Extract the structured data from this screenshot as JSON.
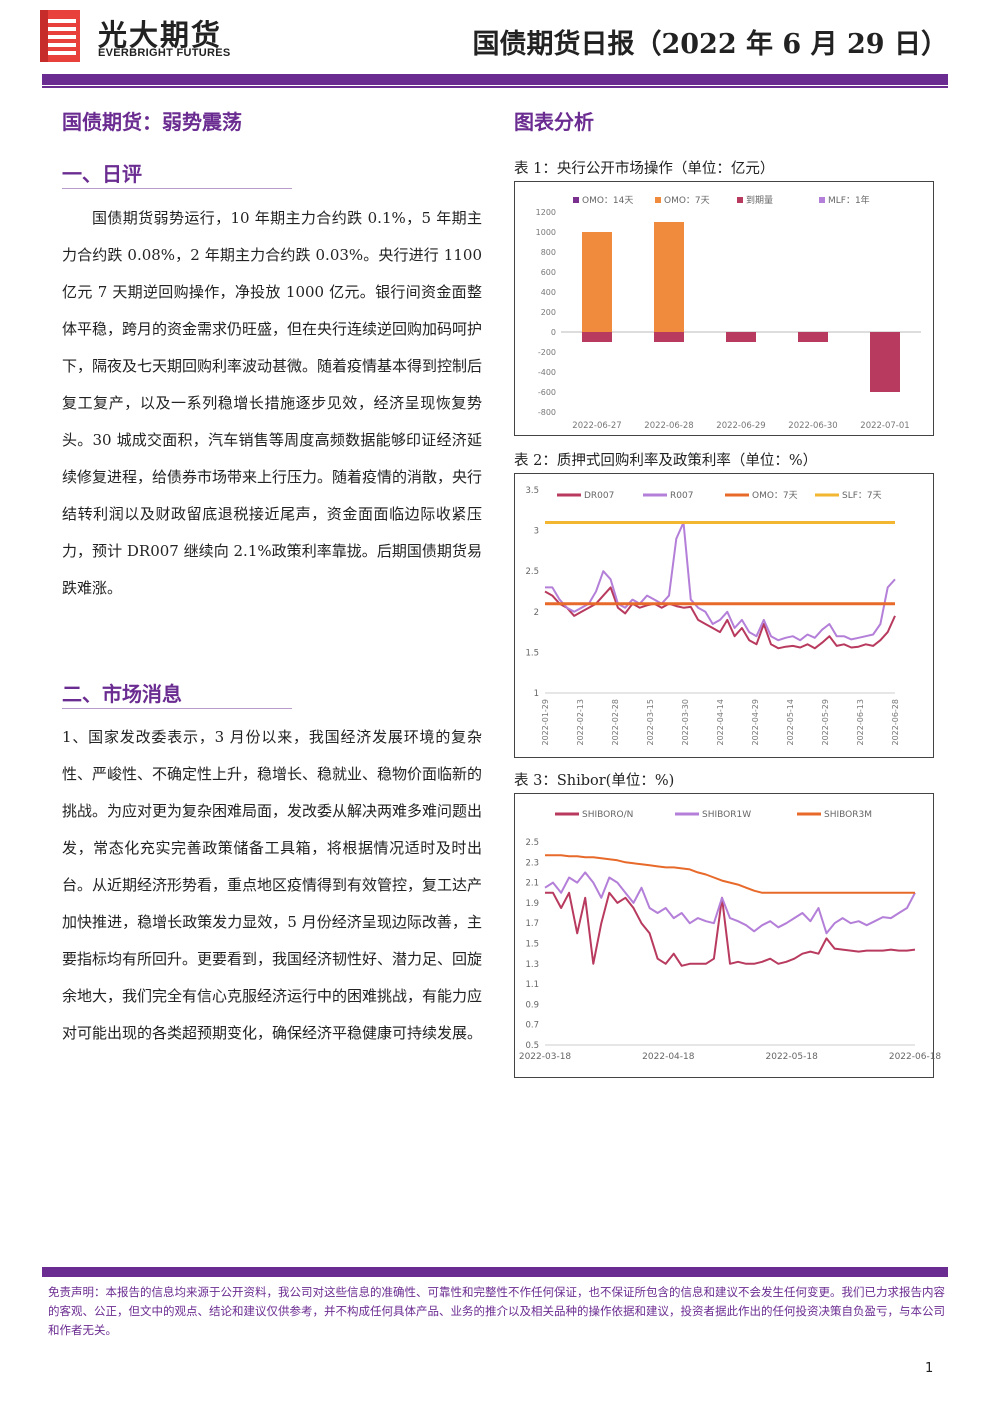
{
  "header": {
    "brand_cn": "光大期货",
    "brand_en": "EVERBRIGHT FUTURES",
    "report_title": "国债期货日报（2022 年 6 月 29 日）"
  },
  "left": {
    "main_title": "国债期货：弱势震荡",
    "sec1_title": "一、日评",
    "sec1_text": "国债期货弱势运行，10 年期主力合约跌 0.1%，5 年期主力合约跌 0.08%，2 年期主力合约跌 0.03%。央行进行 1100 亿元 7 天期逆回购操作，净投放 1000 亿元。银行间资金面整体平稳，跨月的资金需求仍旺盛，但在央行连续逆回购加码呵护下，隔夜及七天期回购利率波动甚微。随着疫情基本得到控制后复工复产，以及一系列稳增长措施逐步见效，经济呈现恢复势头。30 城成交面积，汽车销售等周度高频数据能够印证经济延续修复进程，给债券市场带来上行压力。随着疫情的消散，央行结转利润以及财政留底退税接近尾声，资金面面临边际收紧压力，预计 DR007 继续向 2.1%政策利率靠拢。后期国债期货易跌难涨。",
    "sec2_title": "二、市场消息",
    "sec2_text": "1、国家发改委表示，3 月份以来，我国经济发展环境的复杂性、严峻性、不确定性上升，稳增长、稳就业、稳物价面临新的挑战。为应对更为复杂困难局面，发改委从解决两难多难问题出发，常态化充实完善政策储备工具箱，将根据情况适时及时出台。从近期经济形势看，重点地区疫情得到有效管控，复工达产加快推进，稳增长政策发力显效，5 月份经济呈现边际改善，主要指标均有所回升。更要看到，我国经济韧性好、潜力足、回旋余地大，我们完全有信心克服经济运行中的困难挑战，有能力应对可能出现的各类超预期变化，确保经济平稳健康可持续发展。"
  },
  "right": {
    "title": "图表分析",
    "fig1_caption": "表 1：央行公开市场操作（单位：亿元）",
    "fig2_caption": "表 2：质押式回购利率及政策利率（单位：%）",
    "fig3_caption": "表 3：Shibor(单位：%)"
  },
  "chart_data": [
    {
      "type": "bar",
      "categories": [
        "2022-06-27",
        "2022-06-28",
        "2022-06-29",
        "2022-06-30",
        "2022-07-01"
      ],
      "series": [
        {
          "name": "OMO：14天",
          "color": "#7b2f8e",
          "values": [
            0,
            0,
            0,
            0,
            0
          ]
        },
        {
          "name": "OMO：7天",
          "color": "#f08a3c",
          "values": [
            1000,
            1100,
            0,
            0,
            0
          ]
        },
        {
          "name": "到期量",
          "color": "#b83a5e",
          "values": [
            -100,
            -100,
            -100,
            -100,
            -600
          ]
        },
        {
          "name": "MLF：1年",
          "color": "#b47fd8",
          "values": [
            0,
            0,
            0,
            0,
            0
          ]
        }
      ],
      "yticks": [
        "1200",
        "1000",
        "800",
        "600",
        "400",
        "200",
        "0",
        "-200",
        "-400",
        "-600",
        "-800"
      ],
      "ylim": [
        -800,
        1200
      ]
    },
    {
      "type": "line",
      "xticks": [
        "2022-01-29",
        "2022-02-13",
        "2022-02-28",
        "2022-03-15",
        "2022-03-30",
        "2022-04-14",
        "2022-04-29",
        "2022-05-14",
        "2022-05-29",
        "2022-06-13",
        "2022-06-28"
      ],
      "yticks": [
        "3.5",
        "3",
        "2.5",
        "2",
        "1.5",
        "1"
      ],
      "ylim": [
        1,
        3.5
      ],
      "series": [
        {
          "name": "DR007",
          "color": "#b83a5e",
          "values": [
            2.25,
            2.2,
            2.1,
            2.05,
            1.95,
            2.0,
            2.05,
            2.1,
            2.2,
            2.3,
            2.05,
            1.98,
            2.1,
            2.05,
            2.08,
            2.1,
            2.05,
            2.1,
            2.07,
            2.05,
            2.06,
            1.9,
            1.85,
            1.8,
            1.75,
            1.9,
            1.7,
            1.8,
            1.65,
            1.6,
            1.85,
            1.6,
            1.55,
            1.57,
            1.58,
            1.56,
            1.6,
            1.55,
            1.62,
            1.7,
            1.58,
            1.6,
            1.56,
            1.57,
            1.6,
            1.58,
            1.65,
            1.75,
            1.95
          ]
        },
        {
          "name": "R007",
          "color": "#b47fd8",
          "values": [
            2.3,
            2.3,
            2.15,
            2.05,
            2.0,
            2.05,
            2.1,
            2.25,
            2.5,
            2.4,
            2.1,
            2.05,
            2.15,
            2.1,
            2.2,
            2.15,
            2.1,
            2.2,
            2.9,
            3.1,
            2.15,
            2.05,
            2.0,
            1.85,
            1.9,
            2.0,
            1.8,
            1.9,
            1.75,
            1.7,
            1.9,
            1.7,
            1.65,
            1.68,
            1.7,
            1.65,
            1.72,
            1.68,
            1.78,
            1.85,
            1.7,
            1.7,
            1.66,
            1.68,
            1.7,
            1.72,
            1.85,
            2.3,
            2.4
          ]
        },
        {
          "name": "OMO：7天",
          "color": "#e86a2a",
          "values": [
            2.1,
            2.1
          ]
        },
        {
          "name": "SLF：7天",
          "color": "#f2b630",
          "values": [
            3.1,
            3.1
          ]
        }
      ]
    },
    {
      "type": "line",
      "xticks": [
        "2022-03-18",
        "2022-04-18",
        "2022-05-18",
        "2022-06-18"
      ],
      "yticks": [
        "2.5",
        "2.3",
        "2.1",
        "1.9",
        "1.7",
        "1.5",
        "1.3",
        "1.1",
        "0.9",
        "0.7",
        "0.5"
      ],
      "ylim": [
        0.5,
        2.5
      ],
      "series": [
        {
          "name": "SHIBORO/N",
          "color": "#b83a5e",
          "values": [
            2.0,
            2.0,
            1.85,
            2.0,
            1.6,
            1.95,
            1.3,
            1.7,
            2.0,
            1.9,
            1.95,
            1.85,
            1.7,
            1.6,
            1.35,
            1.3,
            1.4,
            1.28,
            1.3,
            1.3,
            1.3,
            1.35,
            1.95,
            1.3,
            1.32,
            1.3,
            1.3,
            1.32,
            1.35,
            1.3,
            1.32,
            1.35,
            1.4,
            1.42,
            1.4,
            1.55,
            1.45,
            1.44,
            1.43,
            1.42,
            1.43,
            1.43,
            1.43,
            1.44,
            1.43,
            1.43,
            1.44
          ]
        },
        {
          "name": "SHIBOR1W",
          "color": "#b47fd8",
          "values": [
            2.05,
            2.1,
            2.0,
            2.15,
            2.1,
            2.2,
            2.1,
            1.95,
            2.15,
            2.1,
            2.0,
            1.9,
            2.05,
            1.85,
            1.8,
            1.85,
            1.75,
            1.8,
            1.7,
            1.75,
            1.72,
            1.7,
            1.95,
            1.75,
            1.72,
            1.68,
            1.62,
            1.68,
            1.72,
            1.66,
            1.7,
            1.75,
            1.8,
            1.72,
            1.85,
            1.6,
            1.7,
            1.75,
            1.7,
            1.72,
            1.68,
            1.72,
            1.76,
            1.75,
            1.8,
            1.85,
            2.0
          ]
        },
        {
          "name": "SHIBOR3M",
          "color": "#e86a2a",
          "values": [
            2.37,
            2.37,
            2.37,
            2.36,
            2.36,
            2.35,
            2.35,
            2.34,
            2.33,
            2.32,
            2.3,
            2.29,
            2.28,
            2.27,
            2.26,
            2.25,
            2.25,
            2.24,
            2.23,
            2.2,
            2.18,
            2.15,
            2.12,
            2.1,
            2.08,
            2.05,
            2.02,
            2.0,
            2.0,
            2.0,
            2.0,
            2.0,
            2.0,
            2.0,
            2.0,
            2.0,
            2.0,
            2.0,
            2.0,
            2.0,
            2.0,
            2.0,
            2.0,
            2.0,
            2.0,
            2.0,
            2.0
          ]
        }
      ]
    }
  ],
  "footer": {
    "disclaimer": "免责声明：本报告的信息均来源于公开资料，我公司对这些信息的准确性、可靠性和完整性不作任何保证，也不保证所包含的信息和建议不会发生任何变更。我们已力求报告内容的客观、公正，但文中的观点、结论和建议仅供参考，并不构成任何具体产品、业务的推介以及相关品种的操作依据和建议，投资者据此作出的任何投资决策自负盈亏，与本公司和作者无关。",
    "page_number": "1"
  }
}
